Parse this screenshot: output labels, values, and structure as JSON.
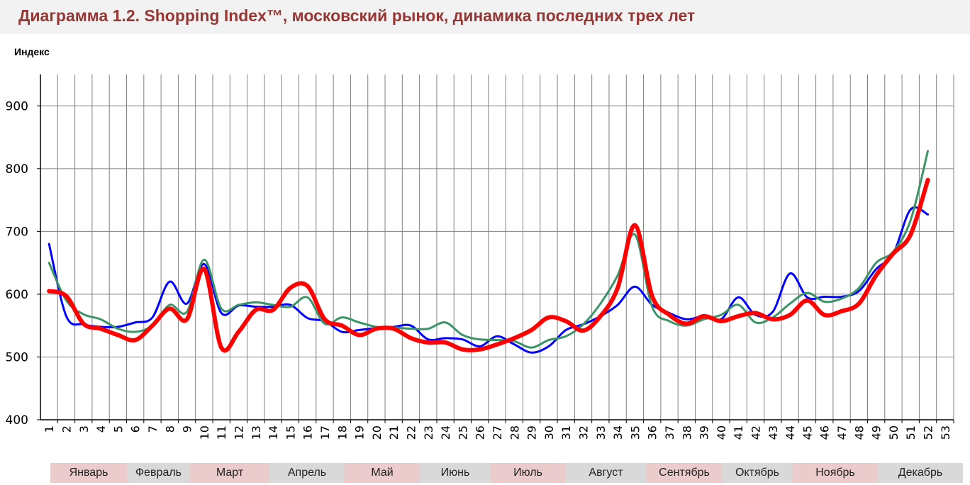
{
  "title": "Диаграмма 1.2. Shopping Index™, московский рынок, динамика последних трех лет",
  "chart_data": {
    "type": "line",
    "title": "Диаграмма 1.2. Shopping Index™, московский рынок, динамика последних трех лет",
    "ylabel": "Индекс",
    "xlabel": "",
    "xlim": [
      0.5,
      53.5
    ],
    "ylim": [
      400,
      950
    ],
    "yticks": [
      400,
      500,
      600,
      700,
      800,
      900
    ],
    "xticks": [
      1,
      2,
      3,
      4,
      5,
      6,
      7,
      8,
      9,
      10,
      11,
      12,
      13,
      14,
      15,
      16,
      17,
      18,
      19,
      20,
      21,
      22,
      23,
      24,
      25,
      26,
      27,
      28,
      29,
      30,
      31,
      32,
      33,
      34,
      35,
      36,
      37,
      38,
      39,
      40,
      41,
      42,
      43,
      44,
      45,
      46,
      47,
      48,
      49,
      50,
      51,
      52,
      53
    ],
    "grid": true,
    "x": [
      1,
      2,
      3,
      4,
      5,
      6,
      7,
      8,
      9,
      10,
      11,
      12,
      13,
      14,
      15,
      16,
      17,
      18,
      19,
      20,
      21,
      22,
      23,
      24,
      25,
      26,
      27,
      28,
      29,
      30,
      31,
      32,
      33,
      34,
      35,
      36,
      37,
      38,
      39,
      40,
      41,
      42,
      43,
      44,
      45,
      46,
      47,
      48,
      49,
      50,
      51,
      52
    ],
    "series": [
      {
        "color": "#0000ff",
        "values": [
          680,
          565,
          552,
          548,
          548,
          555,
          563,
          620,
          585,
          648,
          570,
          582,
          580,
          580,
          583,
          562,
          557,
          540,
          543,
          546,
          548,
          550,
          528,
          530,
          528,
          517,
          533,
          520,
          507,
          517,
          543,
          552,
          565,
          583,
          612,
          583,
          570,
          560,
          565,
          560,
          595,
          567,
          572,
          633,
          595,
          596,
          596,
          605,
          640,
          665,
          735,
          727
        ]
      },
      {
        "color": "#3a9467",
        "values": [
          650,
          590,
          568,
          560,
          545,
          540,
          550,
          583,
          572,
          655,
          577,
          583,
          587,
          583,
          580,
          595,
          553,
          563,
          555,
          548,
          547,
          545,
          545,
          555,
          535,
          528,
          527,
          525,
          515,
          527,
          533,
          552,
          585,
          630,
          695,
          580,
          557,
          550,
          560,
          567,
          583,
          555,
          563,
          585,
          602,
          588,
          593,
          610,
          650,
          668,
          718,
          828
        ]
      },
      {
        "color": "#ff0000",
        "values": [
          605,
          597,
          553,
          545,
          535,
          527,
          550,
          577,
          560,
          640,
          515,
          540,
          575,
          575,
          610,
          613,
          560,
          550,
          535,
          545,
          545,
          530,
          523,
          523,
          512,
          512,
          520,
          530,
          543,
          563,
          557,
          542,
          565,
          610,
          710,
          597,
          567,
          553,
          565,
          557,
          565,
          570,
          560,
          567,
          590,
          567,
          573,
          585,
          630,
          665,
          695,
          782
        ]
      }
    ],
    "months": [
      {
        "label": "Январь",
        "color": "#ebcbcb"
      },
      {
        "label": "Февраль",
        "color": "#d9d9d9"
      },
      {
        "label": "Март",
        "color": "#ebcbcb"
      },
      {
        "label": "Апрель",
        "color": "#d9d9d9"
      },
      {
        "label": "Май",
        "color": "#ebcbcb"
      },
      {
        "label": "Июнь",
        "color": "#d9d9d9"
      },
      {
        "label": "Июль",
        "color": "#ebcbcb"
      },
      {
        "label": "Август",
        "color": "#d9d9d9"
      },
      {
        "label": "Сентябрь",
        "color": "#ebcbcb"
      },
      {
        "label": "Октябрь",
        "color": "#d9d9d9"
      },
      {
        "label": "Ноябрь",
        "color": "#ebcbcb"
      },
      {
        "label": "Декабрь",
        "color": "#d9d9d9"
      }
    ]
  }
}
